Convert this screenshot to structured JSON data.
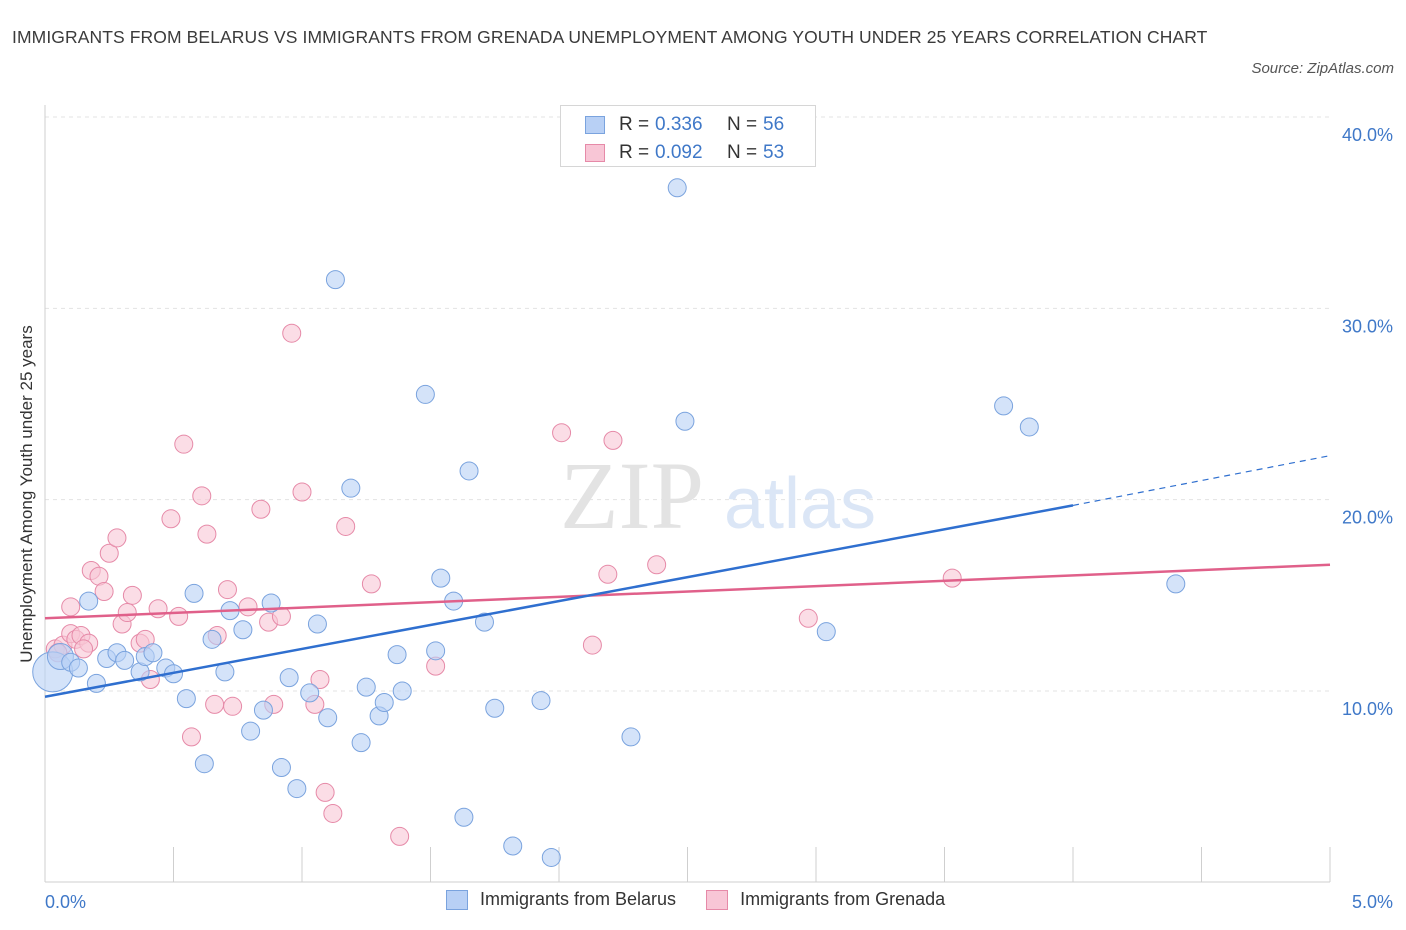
{
  "title": "IMMIGRANTS FROM BELARUS VS IMMIGRANTS FROM GRENADA UNEMPLOYMENT AMONG YOUTH UNDER 25 YEARS CORRELATION CHART",
  "source": "Source: ZipAtlas.com",
  "watermark": {
    "zip": "ZIP",
    "atlas": "atlas"
  },
  "legend": {
    "r_label": "R =",
    "n_label": "N =",
    "belarus": {
      "r": "0.336",
      "n": "56"
    },
    "grenada": {
      "r": "0.092",
      "n": "53"
    }
  },
  "colors": {
    "belarus_fill": "#b8d0f5",
    "belarus_stroke": "#7aa3de",
    "belarus_line": "#2f6fcf",
    "grenada_fill": "#f8c6d6",
    "grenada_stroke": "#e68aa8",
    "grenada_line": "#e0608a",
    "tick_text": "#3f78c8",
    "grid": "#e3e3e3"
  },
  "chart_data": {
    "type": "scatter",
    "title": "IMMIGRANTS FROM BELARUS VS IMMIGRANTS FROM GRENADA UNEMPLOYMENT AMONG YOUTH UNDER 25 YEARS CORRELATION CHART",
    "xlabel": "",
    "ylabel": "Unemployment Among Youth under 25 years",
    "xlim": [
      0,
      5
    ],
    "ylim": [
      0,
      40
    ],
    "x_tick_labels": [
      "0.0%",
      "5.0%"
    ],
    "y_ticks": [
      10,
      20,
      30,
      40
    ],
    "y_tick_labels": [
      "10.0%",
      "20.0%",
      "30.0%",
      "40.0%"
    ],
    "grid": true,
    "series": [
      {
        "name": "Immigrants from Belarus",
        "r": 0.336,
        "n": 56,
        "trend": {
          "x0": 0,
          "y0": 9.7,
          "x1": 4.0,
          "y1": 19.7,
          "dashed_to_x": 5.0,
          "dashed_y": 22.3
        },
        "points": [
          [
            0.03,
            11.0
          ],
          [
            0.06,
            11.8
          ],
          [
            0.1,
            11.5
          ],
          [
            0.13,
            11.2
          ],
          [
            0.17,
            14.7
          ],
          [
            0.2,
            10.4
          ],
          [
            0.24,
            11.7
          ],
          [
            0.28,
            12.0
          ],
          [
            0.31,
            11.6
          ],
          [
            0.37,
            11.0
          ],
          [
            0.39,
            11.8
          ],
          [
            0.42,
            12.0
          ],
          [
            0.47,
            11.2
          ],
          [
            0.5,
            10.9
          ],
          [
            0.55,
            9.6
          ],
          [
            0.58,
            15.1
          ],
          [
            0.62,
            6.2
          ],
          [
            0.65,
            12.7
          ],
          [
            0.7,
            11.0
          ],
          [
            0.72,
            14.2
          ],
          [
            0.77,
            13.2
          ],
          [
            0.8,
            7.9
          ],
          [
            0.85,
            9.0
          ],
          [
            0.88,
            14.6
          ],
          [
            0.92,
            6.0
          ],
          [
            0.95,
            10.7
          ],
          [
            0.98,
            4.9
          ],
          [
            1.03,
            9.9
          ],
          [
            1.06,
            13.5
          ],
          [
            1.1,
            8.6
          ],
          [
            1.13,
            31.5
          ],
          [
            1.19,
            20.6
          ],
          [
            1.23,
            7.3
          ],
          [
            1.25,
            10.2
          ],
          [
            1.3,
            8.7
          ],
          [
            1.32,
            9.4
          ],
          [
            1.37,
            11.9
          ],
          [
            1.39,
            10.0
          ],
          [
            1.48,
            25.5
          ],
          [
            1.52,
            12.1
          ],
          [
            1.54,
            15.9
          ],
          [
            1.59,
            14.7
          ],
          [
            1.63,
            3.4
          ],
          [
            1.65,
            21.5
          ],
          [
            1.71,
            13.6
          ],
          [
            1.75,
            9.1
          ],
          [
            1.82,
            1.9
          ],
          [
            1.93,
            9.5
          ],
          [
            1.97,
            1.3
          ],
          [
            2.28,
            7.6
          ],
          [
            2.46,
            36.3
          ],
          [
            2.49,
            24.1
          ],
          [
            3.04,
            13.1
          ],
          [
            3.73,
            24.9
          ],
          [
            3.83,
            23.8
          ],
          [
            4.4,
            15.6
          ]
        ]
      },
      {
        "name": "Immigrants from Grenada",
        "r": 0.092,
        "n": 53,
        "trend": {
          "x0": 0,
          "y0": 13.8,
          "x1": 5.0,
          "y1": 16.6
        },
        "points": [
          [
            0.04,
            12.2
          ],
          [
            0.07,
            12.4
          ],
          [
            0.1,
            13.0
          ],
          [
            0.1,
            14.4
          ],
          [
            0.12,
            12.7
          ],
          [
            0.14,
            12.9
          ],
          [
            0.17,
            12.5
          ],
          [
            0.18,
            16.3
          ],
          [
            0.21,
            16.0
          ],
          [
            0.23,
            15.2
          ],
          [
            0.25,
            17.2
          ],
          [
            0.28,
            18.0
          ],
          [
            0.3,
            13.5
          ],
          [
            0.32,
            14.1
          ],
          [
            0.34,
            15.0
          ],
          [
            0.37,
            12.5
          ],
          [
            0.39,
            12.7
          ],
          [
            0.41,
            10.6
          ],
          [
            0.44,
            14.3
          ],
          [
            0.49,
            19.0
          ],
          [
            0.52,
            13.9
          ],
          [
            0.54,
            22.9
          ],
          [
            0.57,
            7.6
          ],
          [
            0.61,
            20.2
          ],
          [
            0.63,
            18.2
          ],
          [
            0.66,
            9.3
          ],
          [
            0.67,
            12.9
          ],
          [
            0.71,
            15.3
          ],
          [
            0.73,
            9.2
          ],
          [
            0.79,
            14.4
          ],
          [
            0.84,
            19.5
          ],
          [
            0.87,
            13.6
          ],
          [
            0.89,
            9.3
          ],
          [
            0.92,
            13.9
          ],
          [
            0.96,
            28.7
          ],
          [
            1.0,
            20.4
          ],
          [
            1.05,
            9.3
          ],
          [
            1.07,
            10.6
          ],
          [
            1.09,
            4.7
          ],
          [
            1.12,
            3.6
          ],
          [
            1.17,
            18.6
          ],
          [
            1.27,
            15.6
          ],
          [
            1.38,
            2.4
          ],
          [
            1.52,
            11.3
          ],
          [
            2.01,
            23.5
          ],
          [
            2.13,
            12.4
          ],
          [
            2.19,
            16.1
          ],
          [
            2.21,
            23.1
          ],
          [
            2.38,
            16.6
          ],
          [
            2.97,
            13.8
          ],
          [
            3.53,
            15.9
          ],
          [
            0.05,
            12.0
          ],
          [
            0.15,
            12.2
          ]
        ]
      }
    ]
  },
  "bottom_legend": {
    "belarus_label": "Immigrants from Belarus",
    "grenada_label": "Immigrants from Grenada"
  }
}
